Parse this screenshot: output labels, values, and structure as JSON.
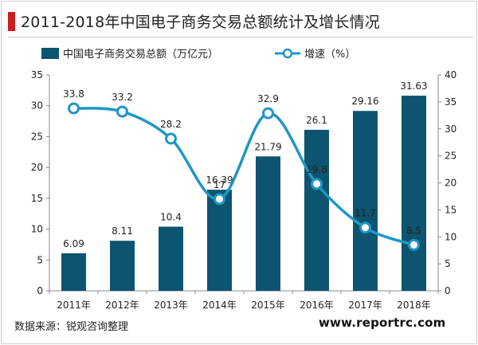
{
  "title": "2011-2018年中国电子商务交易总额统计及增长情况",
  "source": "数据来源：锐观咨询整理",
  "website": "www.reportrc.com",
  "colors": {
    "bar": "#0d5470",
    "line": "#1f97c4",
    "accent": "#cc1e1e"
  },
  "chart_data": {
    "type": "bar",
    "title": "2011-2018年中国电子商务交易总额统计及增长情况",
    "categories": [
      "2011年",
      "2012年",
      "2013年",
      "2014年",
      "2015年",
      "2016年",
      "2017年",
      "2018年"
    ],
    "series": [
      {
        "name": "中国电子商务交易总额（万亿元）",
        "type": "bar",
        "axis": "left",
        "values": [
          6.09,
          8.11,
          10.4,
          16.39,
          21.79,
          26.1,
          29.16,
          31.63
        ]
      },
      {
        "name": "增速（%）",
        "type": "line",
        "axis": "right",
        "values": [
          33.8,
          33.2,
          28.2,
          17,
          32.9,
          19.8,
          11.7,
          8.5
        ]
      }
    ],
    "y_left": {
      "min": 0,
      "max": 35,
      "ticks": [
        0,
        5,
        10,
        15,
        20,
        25,
        30,
        35
      ]
    },
    "y_right": {
      "min": 0,
      "max": 40,
      "ticks": [
        0,
        5,
        10,
        15,
        20,
        25,
        30,
        35,
        40
      ]
    },
    "legend_position": "top",
    "grid": false
  }
}
